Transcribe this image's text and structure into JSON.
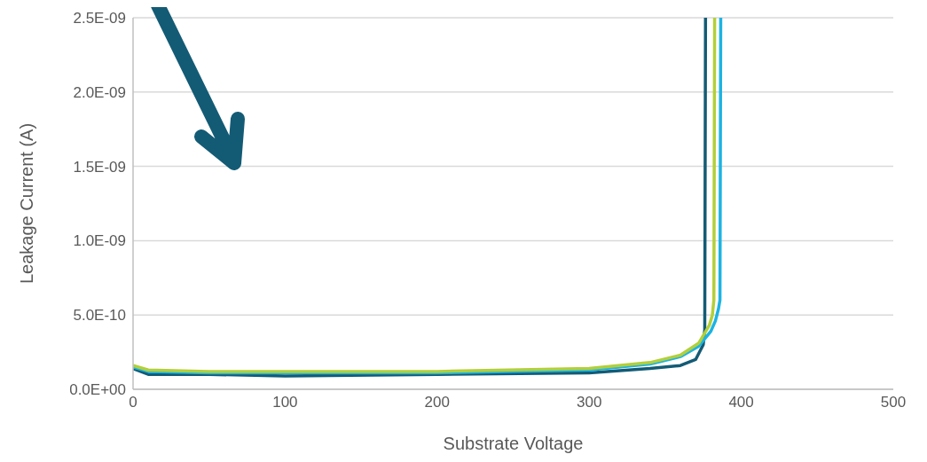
{
  "chart_data": {
    "type": "line",
    "xlabel": "Substrate Voltage",
    "ylabel": "Leakage Current (A)",
    "xlim": [
      0,
      500
    ],
    "xticks": [
      0,
      100,
      200,
      300,
      400,
      500
    ],
    "ylim": [
      0,
      2.5e-09
    ],
    "yticks": [
      {
        "value": 0,
        "label": "0.0E+00"
      },
      {
        "value": 5e-10,
        "label": "5.0E-10"
      },
      {
        "value": 1e-09,
        "label": "1.0E-09"
      },
      {
        "value": 1.5e-09,
        "label": "1.5E-09"
      },
      {
        "value": 2e-09,
        "label": "2.0E-09"
      },
      {
        "value": 2.5e-09,
        "label": "2.5E-09"
      }
    ],
    "grid": "y",
    "marker": "none",
    "line_style": "solid",
    "series": [
      {
        "color": "#135b75",
        "x": [
          0,
          10,
          50,
          100,
          200,
          300,
          340,
          360,
          370,
          375,
          376,
          376.5
        ],
        "values": [
          1.4e-10,
          1e-10,
          1e-10,
          9e-11,
          1e-10,
          1.1e-10,
          1.4e-10,
          1.6e-10,
          2e-10,
          3e-10,
          4e-10,
          2.5e-09
        ]
      },
      {
        "color": "#1cb3e3",
        "x": [
          0,
          10,
          50,
          100,
          200,
          300,
          340,
          360,
          372,
          380,
          383,
          385,
          386,
          386.5
        ],
        "values": [
          1.5e-10,
          1.2e-10,
          1.1e-10,
          1.1e-10,
          1.1e-10,
          1.3e-10,
          1.7e-10,
          2.2e-10,
          2.9e-10,
          3.9e-10,
          4.6e-10,
          5.4e-10,
          6e-10,
          2.5e-09
        ]
      },
      {
        "color": "#b2cf3a",
        "x": [
          0,
          10,
          50,
          100,
          200,
          300,
          340,
          360,
          372,
          379,
          381,
          382,
          382.5
        ],
        "values": [
          1.6e-10,
          1.3e-10,
          1.2e-10,
          1.2e-10,
          1.2e-10,
          1.4e-10,
          1.8e-10,
          2.3e-10,
          3.1e-10,
          4.3e-10,
          5e-10,
          6e-10,
          2.5e-09
        ]
      }
    ]
  }
}
